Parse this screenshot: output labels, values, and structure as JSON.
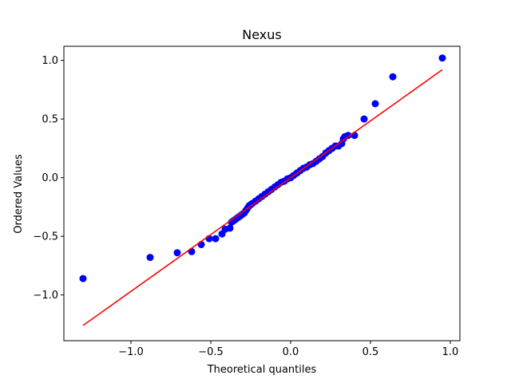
{
  "chart_data": {
    "type": "scatter",
    "title": "Nexus",
    "xlabel": "Theoretical quantiles",
    "ylabel": "Ordered Values",
    "xlim": [
      -1.42,
      1.06
    ],
    "ylim": [
      -1.39,
      1.12
    ],
    "xticks": [
      -1.0,
      -0.5,
      0.0,
      0.5,
      1.0
    ],
    "xtick_labels": [
      "−1.0",
      "−0.5",
      "0.0",
      "0.5",
      "1.0"
    ],
    "yticks": [
      -1.0,
      -0.5,
      0.0,
      0.5,
      1.0
    ],
    "ytick_labels": [
      "−1.0",
      "−0.5",
      "0.0",
      "0.5",
      "1.0"
    ],
    "grid": false,
    "points_color": "#0000ff",
    "line_color": "#ff0000",
    "series": [
      {
        "kind": "points",
        "x": [
          -1.3,
          -0.88,
          -0.71,
          -0.62,
          -0.56,
          -0.51,
          -0.47,
          -0.43,
          -0.41,
          -0.38,
          -0.37,
          -0.36,
          -0.35,
          -0.34,
          -0.33,
          -0.32,
          -0.31,
          -0.3,
          -0.29,
          -0.28,
          -0.27,
          -0.26,
          -0.25,
          -0.24,
          -0.22,
          -0.2,
          -0.18,
          -0.16,
          -0.14,
          -0.12,
          -0.1,
          -0.08,
          -0.06,
          -0.04,
          -0.02,
          0.0,
          0.02,
          0.04,
          0.06,
          0.08,
          0.1,
          0.12,
          0.14,
          0.16,
          0.18,
          0.2,
          0.22,
          0.24,
          0.26,
          0.28,
          0.3,
          0.32,
          0.33,
          0.34,
          0.36,
          0.4,
          0.46,
          0.53,
          0.64,
          0.95
        ],
        "y": [
          -0.86,
          -0.68,
          -0.64,
          -0.63,
          -0.57,
          -0.52,
          -0.52,
          -0.48,
          -0.44,
          -0.43,
          -0.38,
          -0.37,
          -0.36,
          -0.35,
          -0.34,
          -0.33,
          -0.32,
          -0.31,
          -0.3,
          -0.28,
          -0.26,
          -0.24,
          -0.23,
          -0.22,
          -0.2,
          -0.18,
          -0.16,
          -0.14,
          -0.12,
          -0.1,
          -0.08,
          -0.06,
          -0.04,
          -0.03,
          -0.01,
          0.0,
          0.02,
          0.04,
          0.06,
          0.08,
          0.09,
          0.11,
          0.12,
          0.14,
          0.16,
          0.18,
          0.21,
          0.23,
          0.25,
          0.27,
          0.27,
          0.29,
          0.33,
          0.35,
          0.36,
          0.36,
          0.5,
          0.63,
          0.86,
          1.02
        ]
      },
      {
        "kind": "fit-line",
        "x": [
          -1.3,
          0.95
        ],
        "y": [
          -1.26,
          0.92
        ]
      }
    ]
  }
}
